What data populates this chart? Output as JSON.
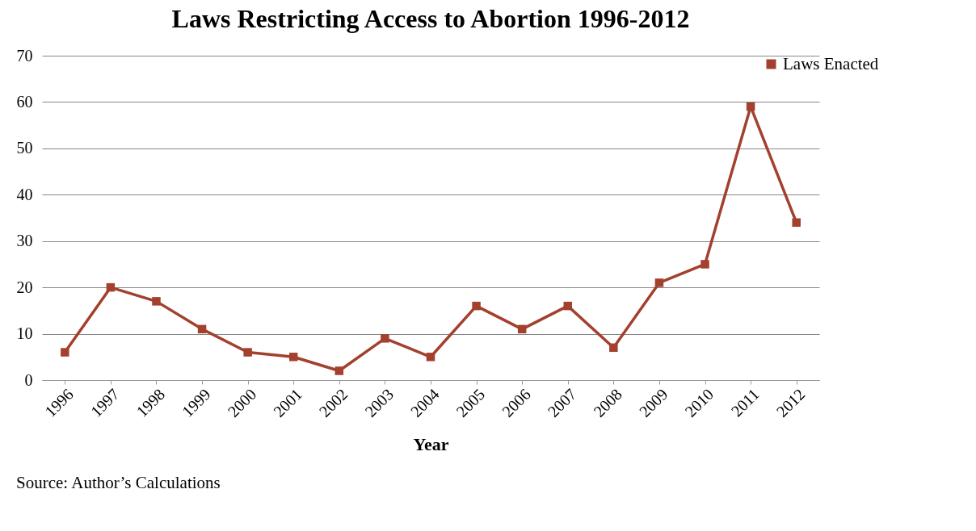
{
  "chart_data": {
    "type": "line",
    "title": "Laws Restricting Access to Abortion 1996-2012",
    "xlabel": "Year",
    "categories": [
      "1996",
      "1997",
      "1998",
      "1999",
      "2000",
      "2001",
      "2002",
      "2003",
      "2004",
      "2005",
      "2006",
      "2007",
      "2008",
      "2009",
      "2010",
      "2011",
      "2012"
    ],
    "series": [
      {
        "name": "Laws Enacted",
        "color": "#a3402e",
        "values": [
          6,
          20,
          17,
          11,
          6,
          5,
          2,
          9,
          5,
          16,
          11,
          16,
          7,
          21,
          25,
          59,
          34
        ]
      }
    ],
    "ylim": [
      0,
      70
    ],
    "yticks": [
      0,
      10,
      20,
      30,
      40,
      50,
      60,
      70
    ],
    "grid": "y",
    "legend": "right",
    "marker": "square",
    "line_style": "solid",
    "annotations": [
      "Source: Author’s Calculations"
    ]
  }
}
